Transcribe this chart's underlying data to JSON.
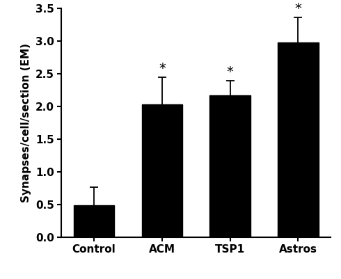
{
  "categories": [
    "Control",
    "ACM",
    "TSP1",
    "Astros"
  ],
  "values": [
    0.49,
    2.03,
    2.17,
    2.98
  ],
  "errors": [
    0.28,
    0.42,
    0.22,
    0.38
  ],
  "significance": [
    false,
    true,
    true,
    true
  ],
  "bar_color": "#000000",
  "ylabel": "Synapses/cell/section (EM)",
  "ylim": [
    0,
    3.5
  ],
  "yticks": [
    0,
    0.5,
    1.0,
    1.5,
    2.0,
    2.5,
    3.0,
    3.5
  ],
  "bar_width": 0.6,
  "background_color": "#ffffff",
  "tick_fontsize": 11,
  "label_fontsize": 11,
  "star_fontsize": 14,
  "capsize": 4
}
